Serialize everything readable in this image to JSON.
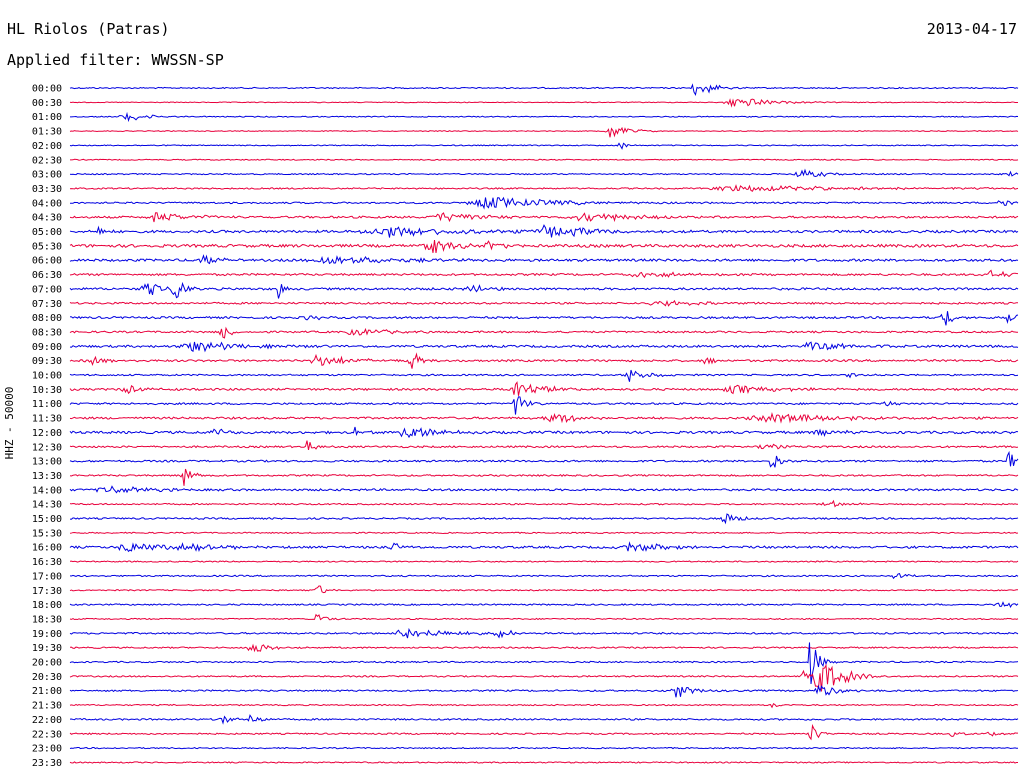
{
  "header": {
    "station": "HL Riolos (Patras)",
    "date": "2013-04-17",
    "filter": "Applied filter: WWSSN-SP"
  },
  "chart_data": {
    "type": "line",
    "title": "HL Riolos (Patras)",
    "subtitle": "Applied filter: WWSSN-SP",
    "date": "2013-04-17",
    "ylabel": "HHZ - 50000",
    "xlabel": "",
    "colors": {
      "even_rows": "#0000e0",
      "odd_rows": "#e8003c"
    },
    "time_window_minutes": 30,
    "rows": [
      {
        "label": "00:00",
        "noise": 0.6,
        "events": [
          {
            "x": 0.66,
            "amp": 9,
            "width": 0.02
          }
        ]
      },
      {
        "label": "00:30",
        "noise": 0.4,
        "events": [
          {
            "x": 0.7,
            "amp": 6,
            "width": 0.04
          }
        ]
      },
      {
        "label": "01:00",
        "noise": 0.5,
        "events": [
          {
            "x": 0.06,
            "amp": 4,
            "width": 0.03
          }
        ]
      },
      {
        "label": "01:30",
        "noise": 0.4,
        "events": [
          {
            "x": 0.57,
            "amp": 9,
            "width": 0.02
          }
        ]
      },
      {
        "label": "02:00",
        "noise": 0.5,
        "events": [
          {
            "x": 0.58,
            "amp": 4,
            "width": 0.01
          }
        ]
      },
      {
        "label": "02:30",
        "noise": 0.5,
        "events": []
      },
      {
        "label": "03:00",
        "noise": 0.6,
        "events": [
          {
            "x": 0.77,
            "amp": 5,
            "width": 0.03
          },
          {
            "x": 0.99,
            "amp": 4,
            "width": 0.01
          }
        ]
      },
      {
        "label": "03:30",
        "noise": 0.7,
        "events": [
          {
            "x": 0.7,
            "amp": 3,
            "width": 0.15
          }
        ]
      },
      {
        "label": "04:00",
        "noise": 0.8,
        "events": [
          {
            "x": 0.44,
            "amp": 6,
            "width": 0.08
          },
          {
            "x": 0.98,
            "amp": 4,
            "width": 0.02
          }
        ]
      },
      {
        "label": "04:30",
        "noise": 1.0,
        "events": [
          {
            "x": 0.09,
            "amp": 5,
            "width": 0.04
          },
          {
            "x": 0.39,
            "amp": 5,
            "width": 0.05
          },
          {
            "x": 0.54,
            "amp": 5,
            "width": 0.06
          }
        ]
      },
      {
        "label": "05:00",
        "noise": 1.2,
        "events": [
          {
            "x": 0.03,
            "amp": 5,
            "width": 0.01
          },
          {
            "x": 0.33,
            "amp": 6,
            "width": 0.08
          },
          {
            "x": 0.5,
            "amp": 6,
            "width": 0.06
          }
        ]
      },
      {
        "label": "05:30",
        "noise": 1.4,
        "events": [
          {
            "x": 0.38,
            "amp": 8,
            "width": 0.03
          },
          {
            "x": 0.44,
            "amp": 7,
            "width": 0.02
          }
        ]
      },
      {
        "label": "06:00",
        "noise": 1.2,
        "events": [
          {
            "x": 0.14,
            "amp": 5,
            "width": 0.02
          },
          {
            "x": 0.27,
            "amp": 5,
            "width": 0.07
          }
        ]
      },
      {
        "label": "06:30",
        "noise": 1.0,
        "events": [
          {
            "x": 0.6,
            "amp": 4,
            "width": 0.04
          },
          {
            "x": 0.97,
            "amp": 4,
            "width": 0.03
          }
        ]
      },
      {
        "label": "07:00",
        "noise": 1.1,
        "events": [
          {
            "x": 0.08,
            "amp": 8,
            "width": 0.02
          },
          {
            "x": 0.11,
            "amp": 14,
            "width": 0.01
          },
          {
            "x": 0.22,
            "amp": 12,
            "width": 0.005
          },
          {
            "x": 0.42,
            "amp": 5,
            "width": 0.02
          }
        ]
      },
      {
        "label": "07:30",
        "noise": 0.9,
        "events": [
          {
            "x": 0.62,
            "amp": 3,
            "width": 0.05
          }
        ]
      },
      {
        "label": "08:00",
        "noise": 1.0,
        "events": [
          {
            "x": 0.25,
            "amp": 5,
            "width": 0.01
          },
          {
            "x": 0.92,
            "amp": 14,
            "width": 0.01
          },
          {
            "x": 0.99,
            "amp": 10,
            "width": 0.01
          }
        ]
      },
      {
        "label": "08:30",
        "noise": 0.9,
        "events": [
          {
            "x": 0.16,
            "amp": 10,
            "width": 0.01
          },
          {
            "x": 0.3,
            "amp": 4,
            "width": 0.04
          }
        ]
      },
      {
        "label": "09:00",
        "noise": 1.1,
        "events": [
          {
            "x": 0.13,
            "amp": 6,
            "width": 0.05
          },
          {
            "x": 0.78,
            "amp": 4,
            "width": 0.06
          }
        ]
      },
      {
        "label": "09:30",
        "noise": 1.0,
        "events": [
          {
            "x": 0.02,
            "amp": 5,
            "width": 0.02
          },
          {
            "x": 0.26,
            "amp": 6,
            "width": 0.04
          },
          {
            "x": 0.36,
            "amp": 12,
            "width": 0.01
          },
          {
            "x": 0.67,
            "amp": 5,
            "width": 0.01
          }
        ]
      },
      {
        "label": "10:00",
        "noise": 0.8,
        "events": [
          {
            "x": 0.59,
            "amp": 7,
            "width": 0.02
          },
          {
            "x": 0.82,
            "amp": 4,
            "width": 0.01
          }
        ]
      },
      {
        "label": "10:30",
        "noise": 1.0,
        "events": [
          {
            "x": 0.06,
            "amp": 5,
            "width": 0.02
          },
          {
            "x": 0.47,
            "amp": 10,
            "width": 0.03
          },
          {
            "x": 0.7,
            "amp": 4,
            "width": 0.06
          }
        ]
      },
      {
        "label": "11:00",
        "noise": 0.9,
        "events": [
          {
            "x": 0.47,
            "amp": 14,
            "width": 0.01
          },
          {
            "x": 0.86,
            "amp": 4,
            "width": 0.01
          }
        ]
      },
      {
        "label": "11:30",
        "noise": 1.0,
        "events": [
          {
            "x": 0.51,
            "amp": 5,
            "width": 0.04
          },
          {
            "x": 0.74,
            "amp": 5,
            "width": 0.09
          }
        ]
      },
      {
        "label": "12:00",
        "noise": 1.2,
        "events": [
          {
            "x": 0.3,
            "amp": 6,
            "width": 0.01
          },
          {
            "x": 0.35,
            "amp": 9,
            "width": 0.03
          },
          {
            "x": 0.15,
            "amp": 4,
            "width": 0.02
          },
          {
            "x": 0.79,
            "amp": 5,
            "width": 0.02
          }
        ]
      },
      {
        "label": "12:30",
        "noise": 0.9,
        "events": [
          {
            "x": 0.25,
            "amp": 6,
            "width": 0.01
          },
          {
            "x": 0.73,
            "amp": 4,
            "width": 0.02
          }
        ]
      },
      {
        "label": "13:00",
        "noise": 0.9,
        "events": [
          {
            "x": 0.74,
            "amp": 12,
            "width": 0.01
          },
          {
            "x": 0.99,
            "amp": 12,
            "width": 0.01
          }
        ]
      },
      {
        "label": "13:30",
        "noise": 0.8,
        "events": [
          {
            "x": 0.12,
            "amp": 12,
            "width": 0.01
          }
        ]
      },
      {
        "label": "14:00",
        "noise": 1.0,
        "events": [
          {
            "x": 0.04,
            "amp": 4,
            "width": 0.05
          }
        ]
      },
      {
        "label": "14:30",
        "noise": 0.7,
        "events": [
          {
            "x": 0.8,
            "amp": 4,
            "width": 0.02
          }
        ]
      },
      {
        "label": "15:00",
        "noise": 0.8,
        "events": [
          {
            "x": 0.69,
            "amp": 6,
            "width": 0.02
          }
        ]
      },
      {
        "label": "15:30",
        "noise": 0.6,
        "events": []
      },
      {
        "label": "16:00",
        "noise": 1.1,
        "events": [
          {
            "x": 0.06,
            "amp": 6,
            "width": 0.04
          },
          {
            "x": 0.12,
            "amp": 4,
            "width": 0.05
          },
          {
            "x": 0.34,
            "amp": 5,
            "width": 0.01
          },
          {
            "x": 0.59,
            "amp": 5,
            "width": 0.05
          }
        ]
      },
      {
        "label": "16:30",
        "noise": 0.6,
        "events": []
      },
      {
        "label": "17:00",
        "noise": 0.7,
        "events": [
          {
            "x": 0.87,
            "amp": 5,
            "width": 0.01
          }
        ]
      },
      {
        "label": "17:30",
        "noise": 0.6,
        "events": [
          {
            "x": 0.26,
            "amp": 7,
            "width": 0.01
          }
        ]
      },
      {
        "label": "18:00",
        "noise": 0.7,
        "events": [
          {
            "x": 0.98,
            "amp": 4,
            "width": 0.02
          }
        ]
      },
      {
        "label": "18:30",
        "noise": 0.6,
        "events": [
          {
            "x": 0.26,
            "amp": 7,
            "width": 0.01
          }
        ]
      },
      {
        "label": "19:00",
        "noise": 0.8,
        "events": [
          {
            "x": 0.35,
            "amp": 6,
            "width": 0.05
          },
          {
            "x": 0.45,
            "amp": 4,
            "width": 0.02
          }
        ]
      },
      {
        "label": "19:30",
        "noise": 0.7,
        "events": [
          {
            "x": 0.19,
            "amp": 7,
            "width": 0.02
          }
        ]
      },
      {
        "label": "20:00",
        "noise": 0.7,
        "events": [
          {
            "x": 0.78,
            "amp": 28,
            "width": 0.01
          }
        ]
      },
      {
        "label": "20:30",
        "noise": 0.7,
        "events": [
          {
            "x": 0.78,
            "amp": 26,
            "width": 0.03
          }
        ]
      },
      {
        "label": "21:00",
        "noise": 0.8,
        "events": [
          {
            "x": 0.64,
            "amp": 8,
            "width": 0.02
          },
          {
            "x": 0.79,
            "amp": 8,
            "width": 0.02
          }
        ]
      },
      {
        "label": "21:30",
        "noise": 0.6,
        "events": [
          {
            "x": 0.74,
            "amp": 3,
            "width": 0.01
          }
        ]
      },
      {
        "label": "22:00",
        "noise": 0.8,
        "events": [
          {
            "x": 0.16,
            "amp": 6,
            "width": 0.01
          },
          {
            "x": 0.19,
            "amp": 8,
            "width": 0.01
          }
        ]
      },
      {
        "label": "22:30",
        "noise": 0.7,
        "events": [
          {
            "x": 0.78,
            "amp": 12,
            "width": 0.01
          },
          {
            "x": 0.93,
            "amp": 4,
            "width": 0.01
          },
          {
            "x": 0.97,
            "amp": 4,
            "width": 0.01
          }
        ]
      },
      {
        "label": "23:00",
        "noise": 0.6,
        "events": []
      },
      {
        "label": "23:30",
        "noise": 0.6,
        "events": []
      }
    ]
  }
}
